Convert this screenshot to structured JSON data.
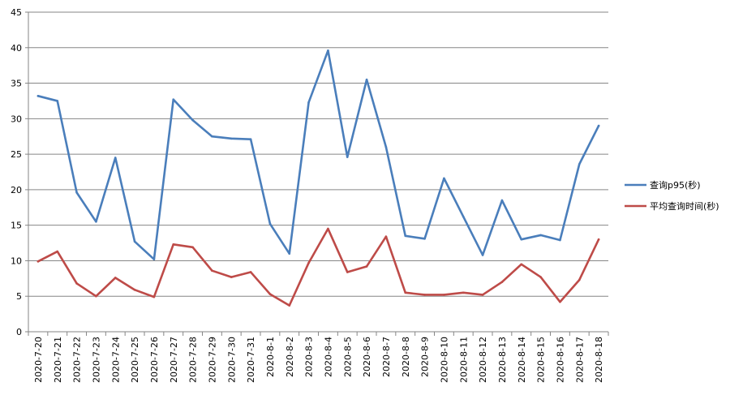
{
  "chart_data": {
    "type": "line",
    "title": "",
    "xlabel": "",
    "ylabel": "",
    "ylim": [
      0,
      45
    ],
    "yticks": [
      0,
      5,
      10,
      15,
      20,
      25,
      30,
      35,
      40,
      45
    ],
    "grid": "horizontal",
    "legend": "right",
    "categories": [
      "2020-7-20",
      "2020-7-21",
      "2020-7-22",
      "2020-7-23",
      "2020-7-24",
      "2020-7-25",
      "2020-7-26",
      "2020-7-27",
      "2020-7-28",
      "2020-7-29",
      "2020-7-30",
      "2020-7-31",
      "2020-8-1",
      "2020-8-2",
      "2020-8-3",
      "2020-8-4",
      "2020-8-5",
      "2020-8-6",
      "2020-8-7",
      "2020-8-8",
      "2020-8-9",
      "2020-8-10",
      "2020-8-11",
      "2020-8-12",
      "2020-8-13",
      "2020-8-14",
      "2020-8-15",
      "2020-8-16",
      "2020-8-17",
      "2020-8-18"
    ],
    "series": [
      {
        "name": "查询p95(秒)",
        "color": "#4a7ebb",
        "values": [
          33.2,
          32.5,
          19.6,
          15.5,
          24.5,
          12.7,
          10.2,
          32.7,
          29.8,
          27.5,
          27.2,
          27.1,
          15.2,
          11.0,
          32.3,
          39.6,
          24.6,
          35.5,
          26.0,
          13.5,
          13.1,
          21.6,
          16.2,
          10.8,
          18.5,
          13.0,
          13.6,
          12.9,
          23.6,
          29.0
        ]
      },
      {
        "name": "平均查询时间(秒)",
        "color": "#be4b48",
        "values": [
          9.9,
          11.3,
          6.8,
          5.0,
          7.6,
          5.9,
          4.9,
          12.3,
          11.9,
          8.6,
          7.7,
          8.4,
          5.3,
          3.7,
          9.7,
          14.5,
          8.4,
          9.2,
          13.4,
          5.5,
          5.2,
          5.2,
          5.5,
          5.2,
          7.0,
          9.5,
          7.7,
          4.2,
          7.3,
          13.0
        ]
      }
    ]
  }
}
